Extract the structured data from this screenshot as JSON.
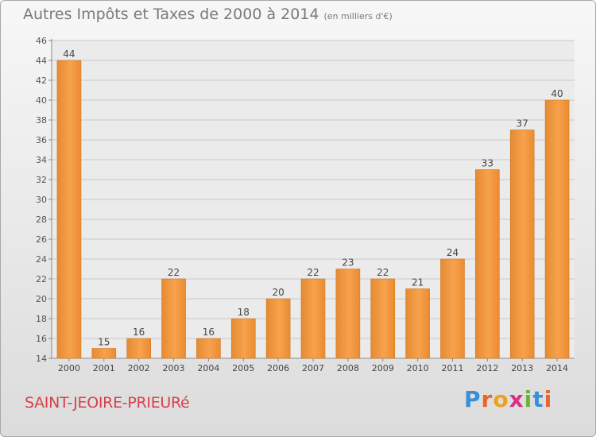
{
  "header": {
    "title": "Autres Impôts et Taxes de 2000 à 2014",
    "unit": "(en milliers d'€)"
  },
  "footer": {
    "commune": "SAINT-JEOIRE-PRIEURé",
    "logo": [
      {
        "ch": "P",
        "color": "#3a8fd6"
      },
      {
        "ch": "r",
        "color": "#e8662d"
      },
      {
        "ch": "o",
        "color": "#f0a020"
      },
      {
        "ch": "x",
        "color": "#d9308a"
      },
      {
        "ch": "i",
        "color": "#6ab43c"
      },
      {
        "ch": "t",
        "color": "#3a8fd6"
      },
      {
        "ch": "i",
        "color": "#e8662d"
      }
    ]
  },
  "chart_data": {
    "type": "bar",
    "categories": [
      "2000",
      "2001",
      "2002",
      "2003",
      "2004",
      "2005",
      "2006",
      "2007",
      "2008",
      "2009",
      "2010",
      "2011",
      "2012",
      "2013",
      "2014"
    ],
    "values": [
      44,
      15,
      16,
      22,
      16,
      18,
      20,
      22,
      23,
      22,
      21,
      24,
      33,
      37,
      40
    ],
    "ylim": [
      14,
      46
    ],
    "yticks": [
      14,
      16,
      18,
      20,
      22,
      24,
      26,
      28,
      30,
      32,
      34,
      36,
      38,
      40,
      42,
      44,
      46
    ],
    "grid": true,
    "bar_color": "#f0922e"
  }
}
